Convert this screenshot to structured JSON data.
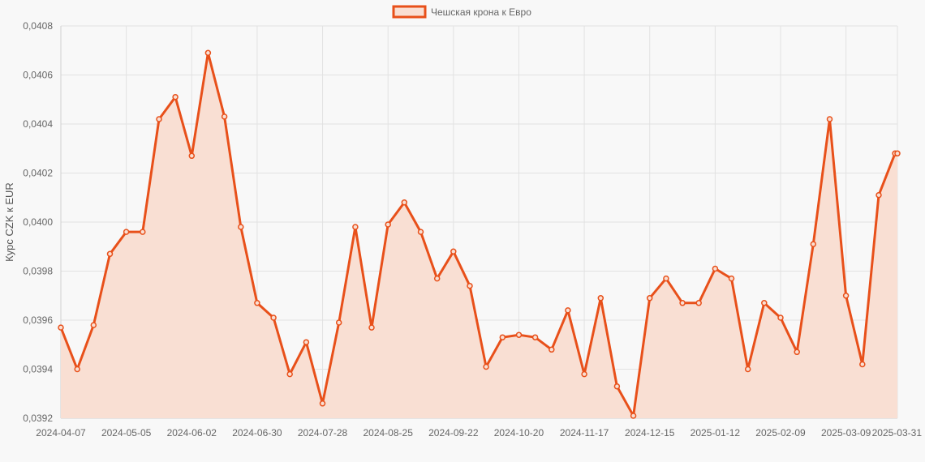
{
  "chart_data": {
    "type": "area",
    "title": "",
    "ylabel": "Курс CZK к EUR",
    "xlabel": "",
    "ylim": [
      0.0392,
      0.0408
    ],
    "grid": true,
    "legend_position": "top-center",
    "line_color": "#e8501a",
    "fill_color": "#f9dfd3",
    "y_ticks": [
      "0,0392",
      "0,0394",
      "0,0396",
      "0,0398",
      "0,0400",
      "0,0402",
      "0,0404",
      "0,0406",
      "0,0408"
    ],
    "x_tick_labels": [
      "2024-04-07",
      "2024-05-05",
      "2024-06-02",
      "2024-06-30",
      "2024-07-28",
      "2024-08-25",
      "2024-09-22",
      "2024-10-20",
      "2024-11-17",
      "2024-12-15",
      "2025-01-12",
      "2025-02-09",
      "2025-03-09",
      "2025-03-31"
    ],
    "x": [
      "2024-04-07",
      "2024-04-14",
      "2024-04-21",
      "2024-04-28",
      "2024-05-05",
      "2024-05-12",
      "2024-05-19",
      "2024-05-26",
      "2024-06-02",
      "2024-06-09",
      "2024-06-16",
      "2024-06-23",
      "2024-06-30",
      "2024-07-07",
      "2024-07-14",
      "2024-07-21",
      "2024-07-28",
      "2024-08-04",
      "2024-08-11",
      "2024-08-18",
      "2024-08-25",
      "2024-09-01",
      "2024-09-08",
      "2024-09-15",
      "2024-09-22",
      "2024-09-29",
      "2024-10-06",
      "2024-10-13",
      "2024-10-20",
      "2024-10-27",
      "2024-11-03",
      "2024-11-10",
      "2024-11-17",
      "2024-11-24",
      "2024-12-01",
      "2024-12-08",
      "2024-12-15",
      "2024-12-22",
      "2024-12-29",
      "2025-01-05",
      "2025-01-12",
      "2025-01-19",
      "2025-01-26",
      "2025-02-02",
      "2025-02-09",
      "2025-02-16",
      "2025-02-23",
      "2025-03-02",
      "2025-03-09",
      "2025-03-16",
      "2025-03-23",
      "2025-03-30",
      "2025-03-31"
    ],
    "series": [
      {
        "name": "Чешская крона к Евро",
        "values": [
          0.03957,
          0.0394,
          0.03958,
          0.03987,
          0.03996,
          0.03996,
          0.04042,
          0.04051,
          0.04027,
          0.04069,
          0.04043,
          0.03998,
          0.03967,
          0.03961,
          0.03938,
          0.03951,
          0.03926,
          0.03959,
          0.03998,
          0.03957,
          0.03999,
          0.04008,
          0.03996,
          0.03977,
          0.03988,
          0.03974,
          0.03941,
          0.03953,
          0.03954,
          0.03953,
          0.03948,
          0.03964,
          0.03938,
          0.03969,
          0.03933,
          0.03921,
          0.03969,
          0.03977,
          0.03967,
          0.03967,
          0.03981,
          0.03977,
          0.0394,
          0.03967,
          0.03961,
          0.03947,
          0.03991,
          0.04042,
          0.0397,
          0.03942,
          0.04011,
          0.04028,
          0.04028
        ]
      }
    ]
  }
}
